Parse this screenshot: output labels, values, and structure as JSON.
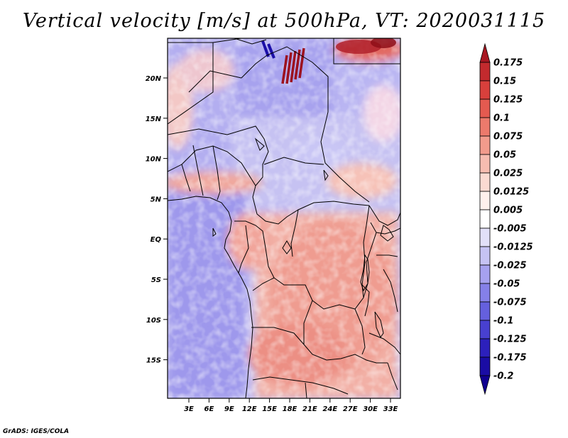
{
  "title": "Vertical velocity [m/s] at 500hPa, VT: 2020031115",
  "credit": "GrADS: IGES/COLA",
  "map": {
    "lat_labels": [
      "20N",
      "15N",
      "10N",
      "5N",
      "EQ",
      "5S",
      "10S",
      "15S"
    ],
    "lon_labels": [
      "3E",
      "6E",
      "9E",
      "12E",
      "15E",
      "18E",
      "21E",
      "24E",
      "27E",
      "30E",
      "33E"
    ]
  },
  "colorbar": {
    "labels": [
      "0.175",
      "0.15",
      "0.125",
      "0.1",
      "0.075",
      "0.05",
      "0.025",
      "0.0125",
      "0.005",
      "-0.005",
      "-0.0125",
      "-0.025",
      "-0.05",
      "-0.075",
      "-0.1",
      "-0.125",
      "-0.175",
      "-0.2"
    ],
    "colors": [
      "#a81722",
      "#c32a2e",
      "#d8403c",
      "#e45a50",
      "#ec7a6c",
      "#f29b8c",
      "#f7bcb0",
      "#fbdad2",
      "#fff0ec",
      "#ffffff",
      "#e2e0f8",
      "#c6c3f4",
      "#a6a1ef",
      "#8580e8",
      "#6560de",
      "#4840d0",
      "#2c20bc",
      "#1a0ca4",
      "#100090"
    ]
  }
}
